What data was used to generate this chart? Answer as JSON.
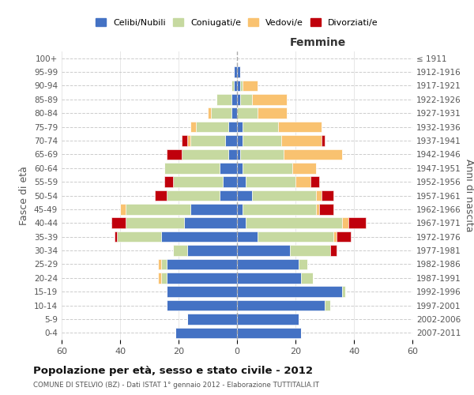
{
  "age_groups": [
    "0-4",
    "5-9",
    "10-14",
    "15-19",
    "20-24",
    "25-29",
    "30-34",
    "35-39",
    "40-44",
    "45-49",
    "50-54",
    "55-59",
    "60-64",
    "65-69",
    "70-74",
    "75-79",
    "80-84",
    "85-89",
    "90-94",
    "95-99",
    "100+"
  ],
  "birth_years": [
    "2007-2011",
    "2002-2006",
    "1997-2001",
    "1992-1996",
    "1987-1991",
    "1982-1986",
    "1977-1981",
    "1972-1976",
    "1967-1971",
    "1962-1966",
    "1957-1961",
    "1952-1956",
    "1947-1951",
    "1942-1946",
    "1937-1941",
    "1932-1936",
    "1927-1931",
    "1922-1926",
    "1917-1921",
    "1912-1916",
    "≤ 1911"
  ],
  "male": {
    "celibi": [
      21,
      17,
      24,
      24,
      24,
      24,
      17,
      26,
      18,
      16,
      6,
      5,
      6,
      3,
      4,
      3,
      2,
      2,
      1,
      1,
      0
    ],
    "coniugati": [
      0,
      0,
      0,
      0,
      2,
      2,
      5,
      15,
      20,
      22,
      18,
      17,
      19,
      16,
      12,
      11,
      7,
      5,
      1,
      0,
      0
    ],
    "vedovi": [
      0,
      0,
      0,
      0,
      1,
      1,
      0,
      0,
      0,
      2,
      0,
      0,
      0,
      0,
      1,
      2,
      1,
      0,
      0,
      0,
      0
    ],
    "divorziati": [
      0,
      0,
      0,
      0,
      0,
      0,
      0,
      1,
      5,
      0,
      4,
      3,
      0,
      5,
      2,
      0,
      0,
      0,
      0,
      0,
      0
    ]
  },
  "female": {
    "nubili": [
      22,
      21,
      30,
      36,
      22,
      21,
      18,
      7,
      3,
      2,
      5,
      3,
      2,
      1,
      2,
      2,
      0,
      1,
      1,
      1,
      0
    ],
    "coniugate": [
      0,
      0,
      2,
      1,
      4,
      3,
      14,
      26,
      33,
      25,
      22,
      17,
      17,
      15,
      13,
      12,
      7,
      4,
      1,
      0,
      0
    ],
    "vedove": [
      0,
      0,
      0,
      0,
      0,
      0,
      0,
      1,
      2,
      1,
      2,
      5,
      8,
      20,
      14,
      15,
      10,
      12,
      5,
      0,
      0
    ],
    "divorziate": [
      0,
      0,
      0,
      0,
      0,
      0,
      2,
      5,
      6,
      5,
      4,
      3,
      0,
      0,
      1,
      0,
      0,
      0,
      0,
      0,
      0
    ]
  },
  "colors": {
    "celibi": "#4472C4",
    "coniugati": "#C6D9A0",
    "vedovi": "#F9C270",
    "divorziati": "#C0000C"
  },
  "xlim": 60,
  "title": "Popolazione per età, sesso e stato civile - 2012",
  "subtitle": "COMUNE DI STELVIO (BZ) - Dati ISTAT 1° gennaio 2012 - Elaborazione TUTTITALIA.IT",
  "ylabel": "Fasce di età",
  "ylabel_right": "Anni di nascita",
  "xlabel_right": "Femmine"
}
